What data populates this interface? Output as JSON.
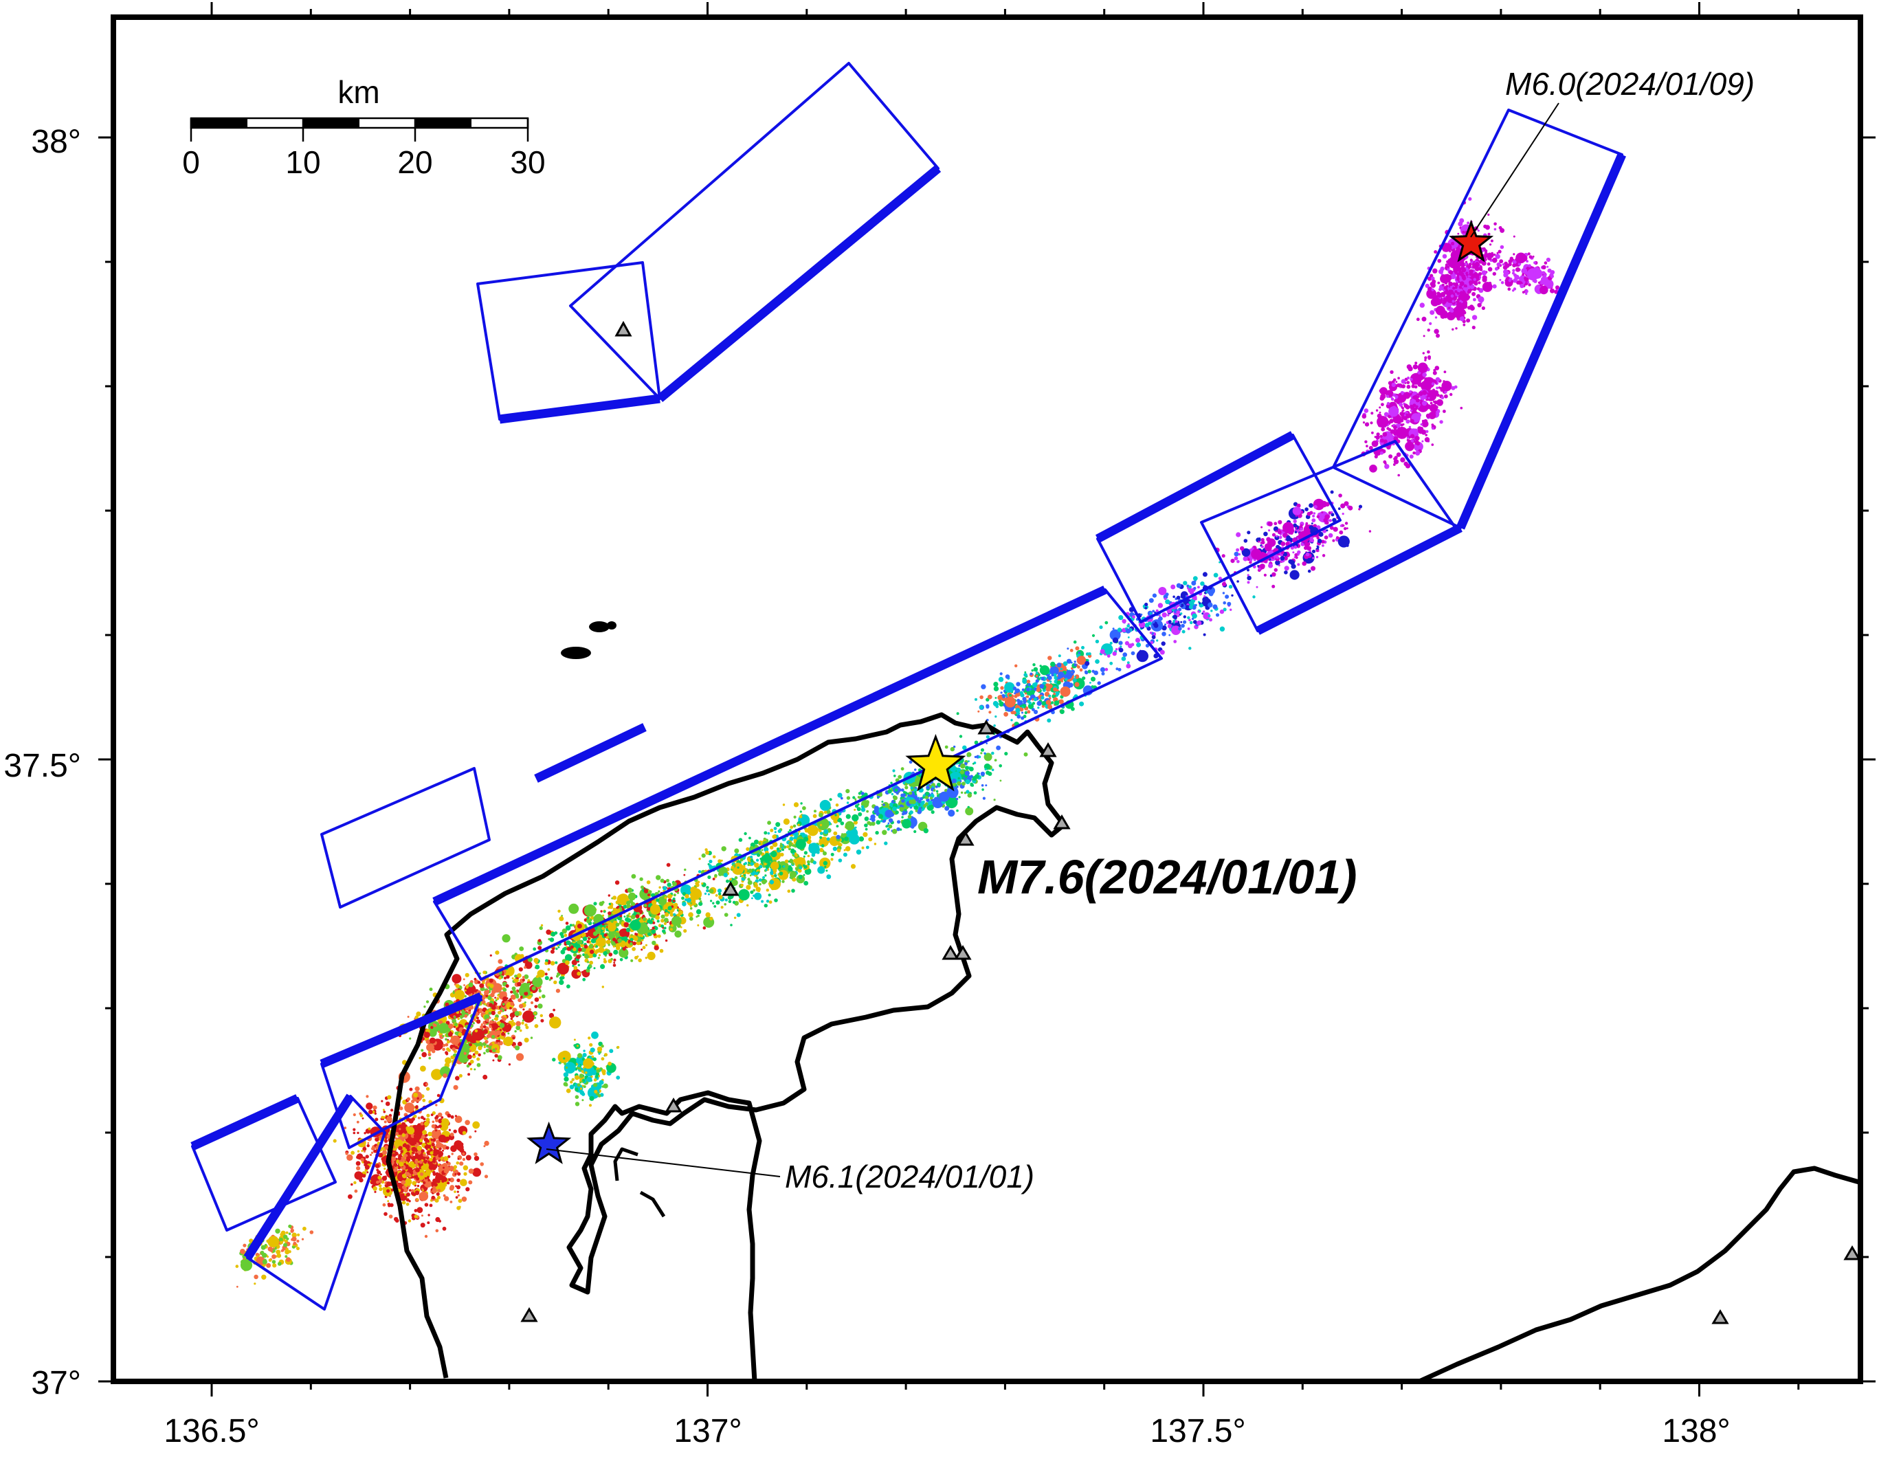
{
  "map": {
    "x_ticks": [
      {
        "lon": 136.5,
        "label": "136.5°"
      },
      {
        "lon": 137.0,
        "label": "137°"
      },
      {
        "lon": 137.5,
        "label": "137.5°"
      },
      {
        "lon": 138.0,
        "label": "138°"
      }
    ],
    "y_ticks": [
      {
        "lat": 38.0,
        "label": "38°"
      },
      {
        "lat": 37.5,
        "label": "37.5°"
      },
      {
        "lat": 37.0,
        "label": "37°"
      }
    ],
    "scale_bar": {
      "unit": "km",
      "labels": [
        "0",
        "10",
        "20",
        "30"
      ]
    },
    "annotations": {
      "main_event": "M7.6(2024/01/01)",
      "northeast_event": "M6.0(2024/01/09)",
      "southwest_event": "M6.1(2024/01/01)"
    },
    "events": [
      {
        "name": "M7.6",
        "lon": 137.23,
        "lat": 37.495,
        "color": "#ffe600"
      },
      {
        "name": "M6.0",
        "lon": 137.77,
        "lat": 37.915,
        "color": "#e8180a"
      },
      {
        "name": "M6.1",
        "lon": 136.84,
        "lat": 37.19,
        "color": "#1e2ee6"
      }
    ],
    "colors": {
      "fault_model": "#1010e6",
      "coastline": "#000000",
      "seismicity_scale": [
        "#d7191c",
        "#f46d43",
        "#e6c000",
        "#66cc33",
        "#00cc66",
        "#00cccc",
        "#3366ff",
        "#1a1ad0",
        "#cc33ff",
        "#cc00cc"
      ]
    }
  }
}
